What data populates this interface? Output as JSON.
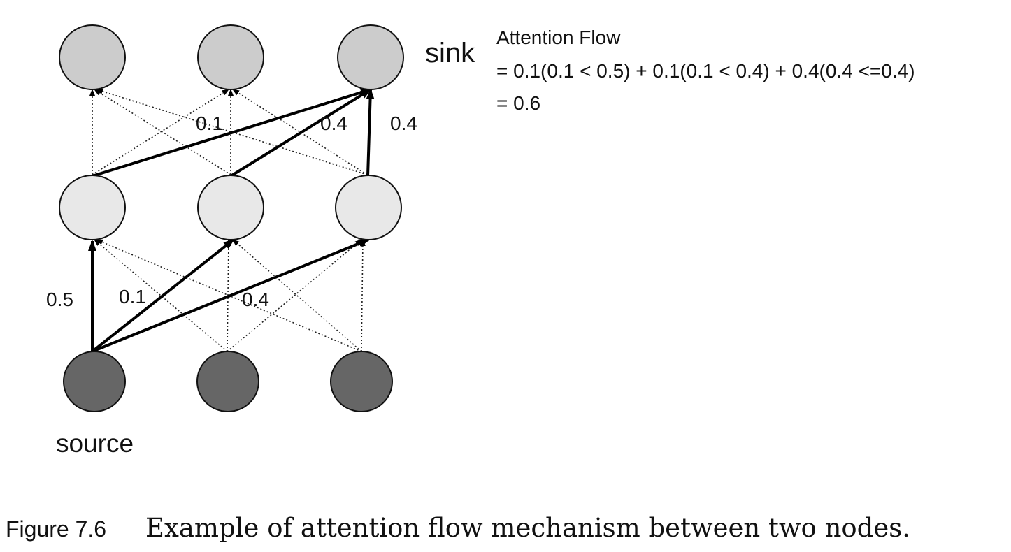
{
  "diagram": {
    "sink_label": "sink",
    "source_label": "source",
    "formula": {
      "title": "Attention Flow",
      "line1": "= 0.1(0.1 < 0.5) + 0.1(0.1 < 0.4) + 0.4(0.4 <=0.4)",
      "line2": "= 0.6"
    },
    "edge_labels": {
      "upper_a": "0.1",
      "upper_b": "0.4",
      "upper_c": "0.4",
      "lower_a": "0.5",
      "lower_b": "0.1",
      "lower_c": "0.4"
    },
    "layers": [
      {
        "name": "source",
        "nodes": [
          "s1",
          "s2",
          "s3"
        ],
        "color": "#666666"
      },
      {
        "name": "hidden",
        "nodes": [
          "h1",
          "h2",
          "h3"
        ],
        "color": "#e8e8e8"
      },
      {
        "name": "sink",
        "nodes": [
          "t1",
          "t2",
          "t3"
        ],
        "color": "#cccccc"
      }
    ],
    "edges_bold": [
      {
        "from": "s1",
        "to": "h1",
        "weight": "0.5"
      },
      {
        "from": "s1",
        "to": "h2",
        "weight": "0.1"
      },
      {
        "from": "s1",
        "to": "h3",
        "weight": "0.4"
      },
      {
        "from": "h1",
        "to": "t3",
        "weight": "0.1"
      },
      {
        "from": "h2",
        "to": "t3",
        "weight": "0.4"
      },
      {
        "from": "h3",
        "to": "t3",
        "weight": "0.4"
      }
    ]
  },
  "caption": {
    "label": "Figure 7.6",
    "text": "Example of attention flow mechanism between two nodes."
  }
}
